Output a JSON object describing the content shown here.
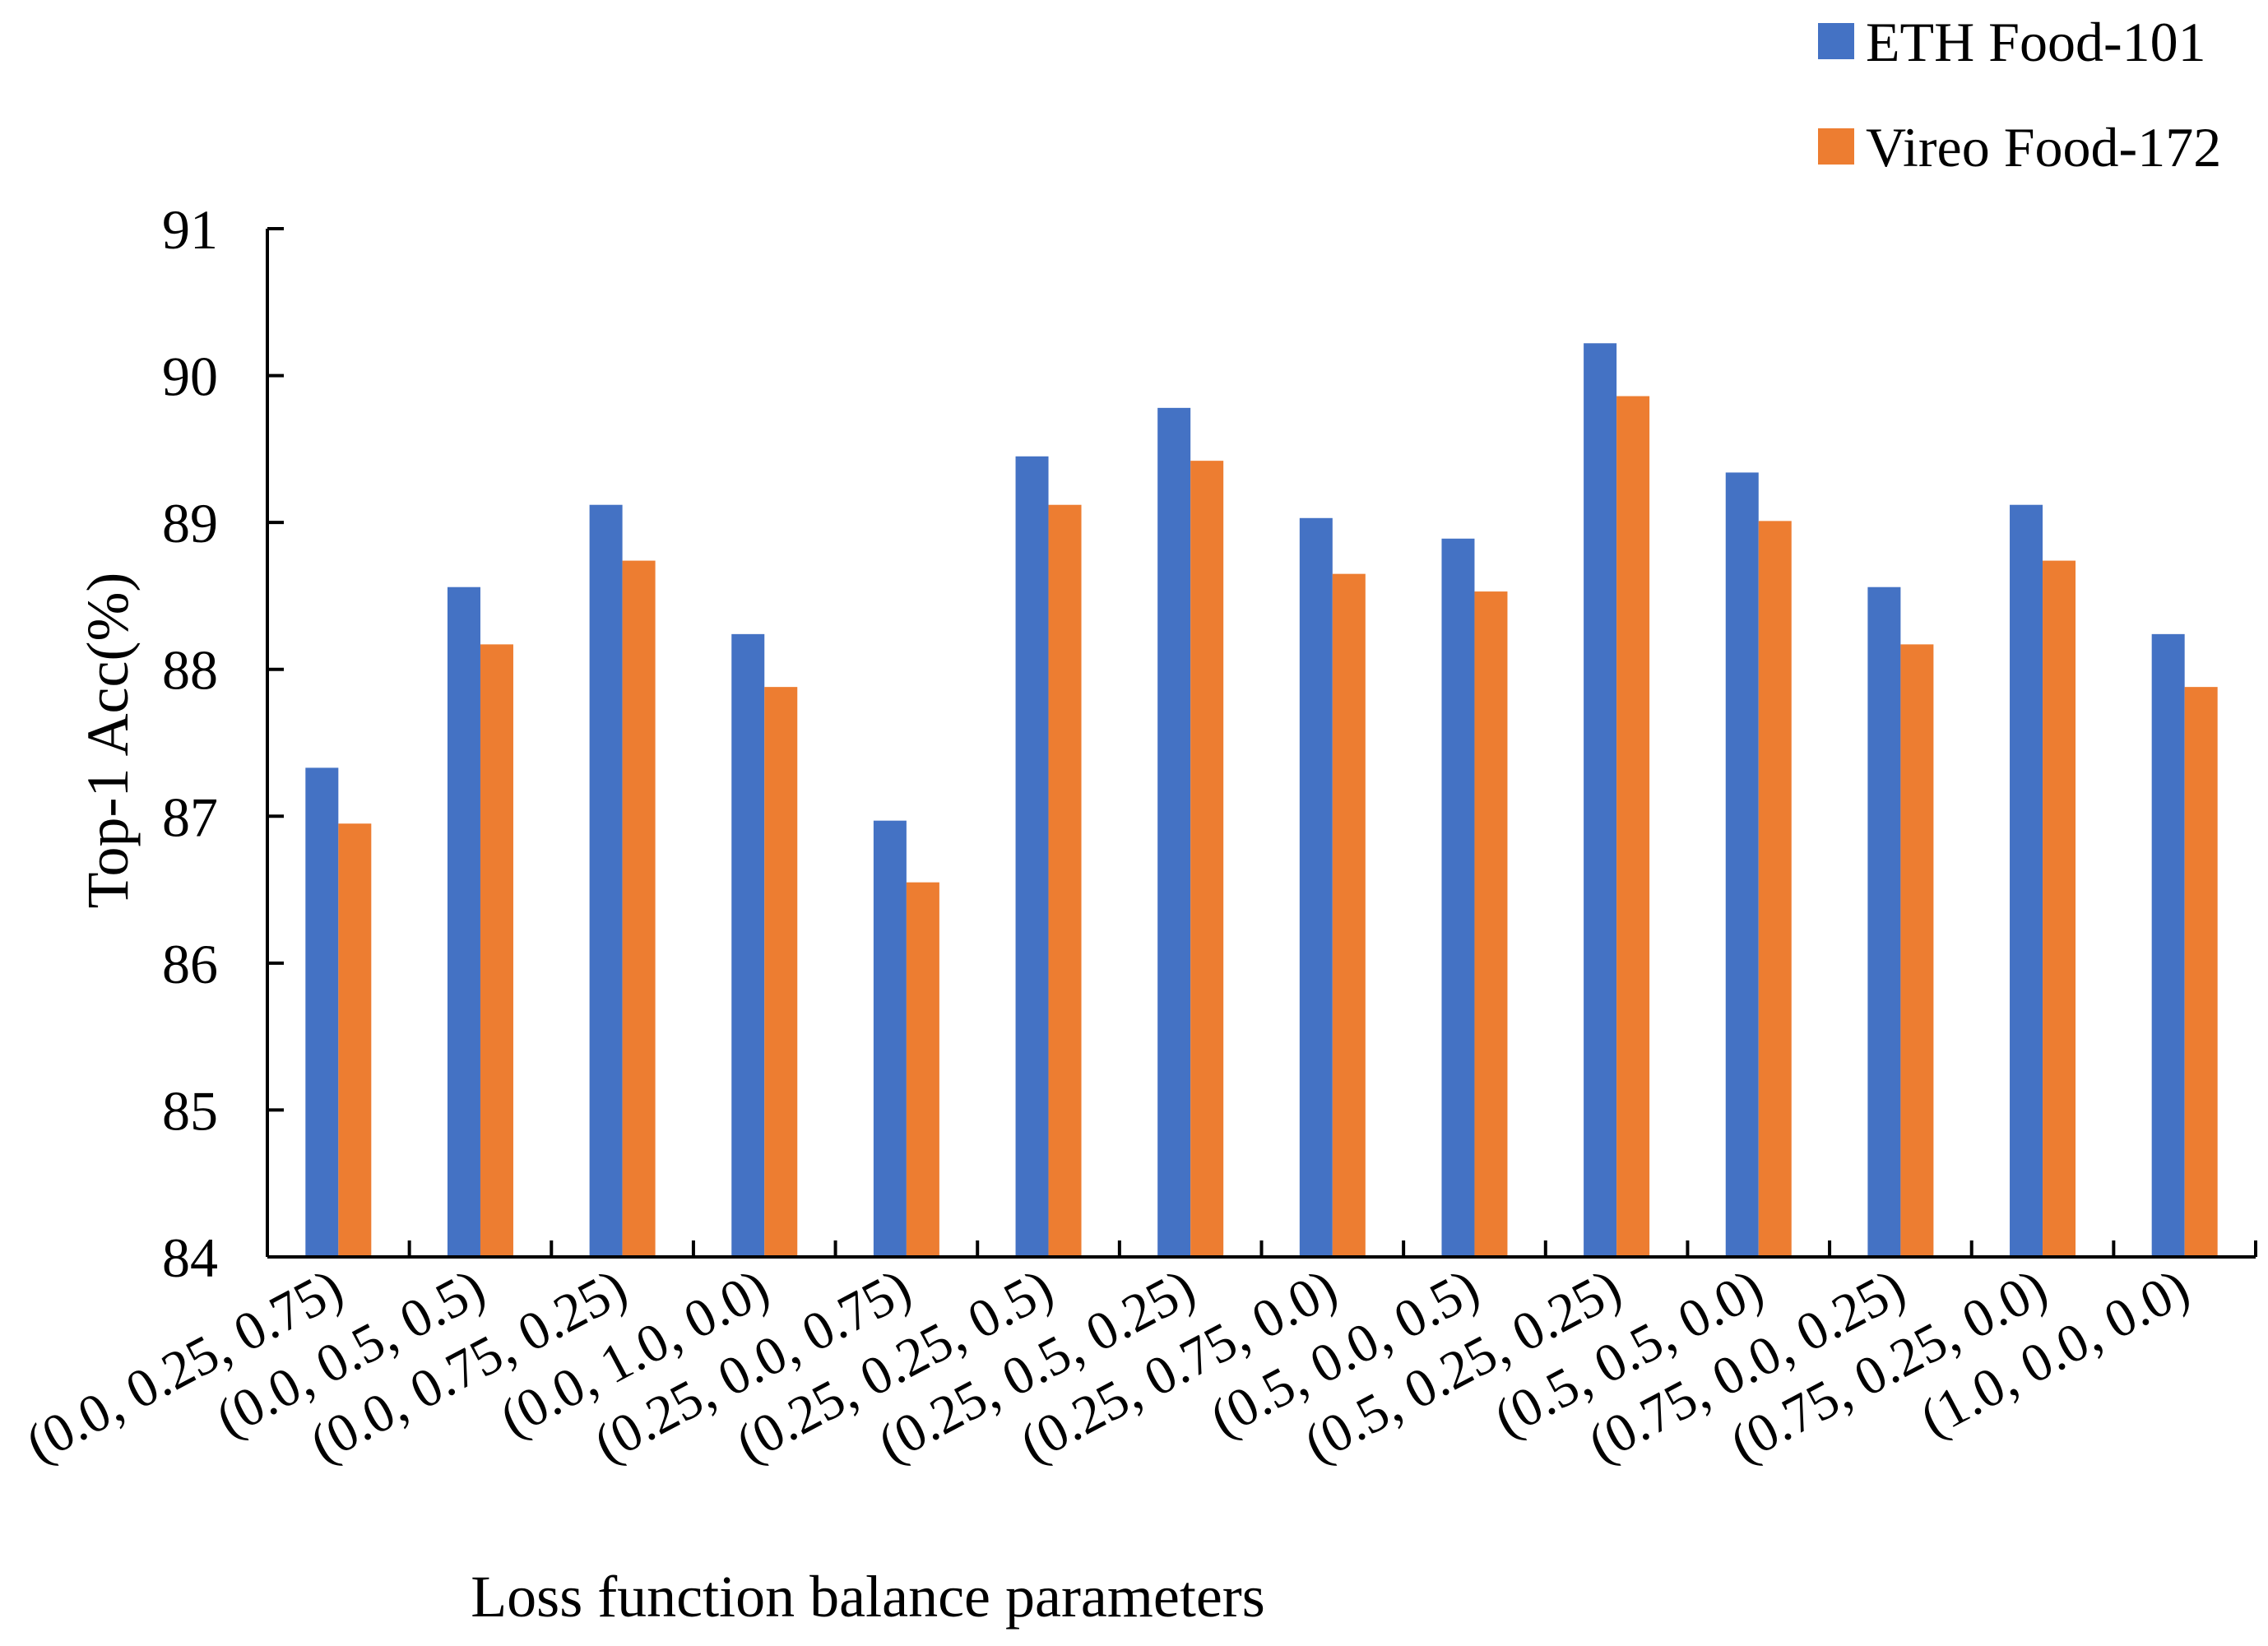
{
  "chart_data": {
    "type": "bar",
    "title": "",
    "xlabel": "Loss function balance parameters",
    "ylabel": "Top-1 Acc(%)",
    "ylim": [
      84,
      91
    ],
    "yticks": [
      "84",
      "85",
      "86",
      "87",
      "88",
      "89",
      "90",
      "91"
    ],
    "grid": false,
    "legend_position": "top-right",
    "categories": [
      "(0.0, 0.25, 0.75)",
      "(0.0, 0.5, 0.5)",
      "(0.0, 0.75, 0.25)",
      "(0.0, 1.0, 0.0)",
      "(0.25, 0.0, 0.75)",
      "(0.25, 0.25, 0.5)",
      "(0.25, 0.5, 0.25)",
      "(0.25, 0.75, 0.0)",
      "(0.5, 0.0, 0.5)",
      "(0.5, 0.25, 0.25)",
      "(0.5, 0.5, 0.0)",
      "(0.75, 0.0, 0.25)",
      "(0.75, 0.25, 0.0)",
      "(1.0, 0.0, 0.0)"
    ],
    "series": [
      {
        "name": "ETH Food-101",
        "color": "#4472C4",
        "values": [
          87.33,
          88.56,
          89.12,
          88.24,
          86.97,
          89.45,
          89.78,
          89.03,
          88.89,
          90.22,
          89.34,
          88.56,
          89.12,
          88.24
        ]
      },
      {
        "name": "Vireo Food-172",
        "color": "#ED7D31",
        "values": [
          86.95,
          88.17,
          88.74,
          87.88,
          86.55,
          89.12,
          89.42,
          88.65,
          88.53,
          89.86,
          89.01,
          88.17,
          88.74,
          87.88
        ]
      }
    ]
  }
}
